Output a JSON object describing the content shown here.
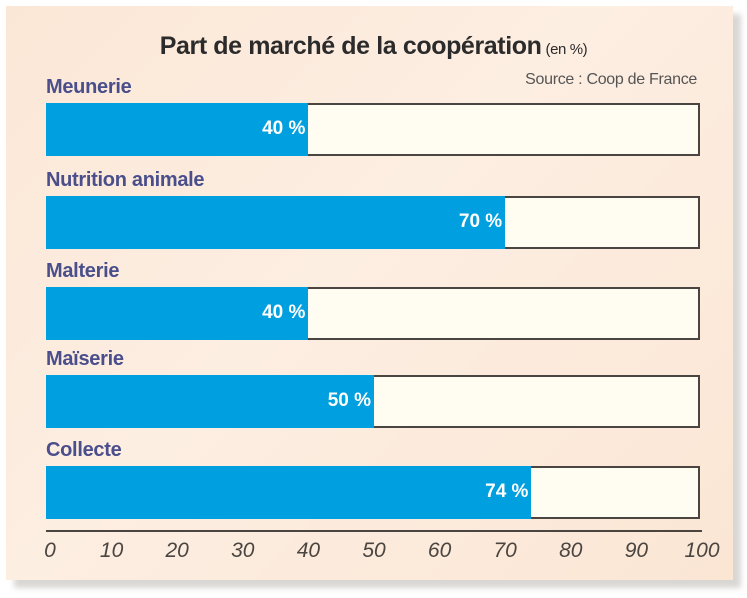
{
  "chart_data": {
    "type": "bar",
    "orientation": "horizontal",
    "title": "Part de marché de la coopération",
    "title_unit": "(en %)",
    "source": "Source : Coop de France",
    "categories": [
      "Meunerie",
      "Nutrition animale",
      "Malterie",
      "Maïserie",
      "Collecte"
    ],
    "values": [
      40,
      70,
      40,
      50,
      74
    ],
    "value_labels": [
      "40 %",
      "70 %",
      "40 %",
      "50 %",
      "74 %"
    ],
    "xlim": [
      0,
      100
    ],
    "xticks": [
      "0",
      "10",
      "20",
      "30",
      "40",
      "50",
      "60",
      "70",
      "80",
      "90",
      "100"
    ],
    "xlabel": "",
    "ylabel": "",
    "grid": false,
    "colors": {
      "bar": "#009fdf",
      "track": "#fffcf2",
      "label": "#4a4f8c",
      "background": "#fbe7d6"
    }
  }
}
